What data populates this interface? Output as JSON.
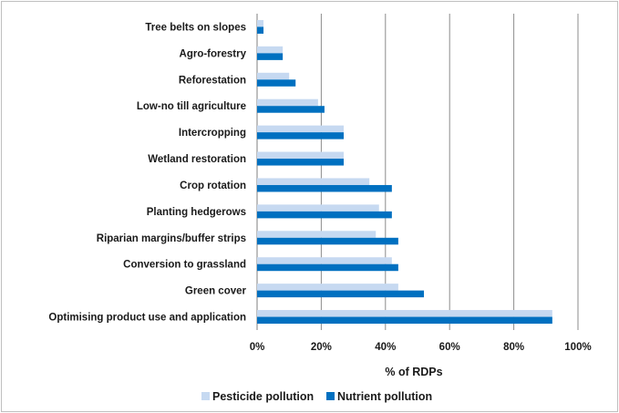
{
  "chart_data": {
    "type": "bar",
    "orientation": "horizontal",
    "categories": [
      "Tree belts on slopes",
      "Agro-forestry",
      "Reforestation",
      "Low-no till agriculture",
      "Intercropping",
      "Wetland restoration",
      "Crop rotation",
      "Planting hedgerows",
      "Riparian margins/buffer strips",
      "Conversion to grassland",
      "Green cover",
      "Optimising product use and application"
    ],
    "series": [
      {
        "name": "Pesticide pollution",
        "color": "#c6d9f1",
        "values": [
          2,
          8,
          10,
          19,
          27,
          27,
          35,
          38,
          37,
          42,
          44,
          92
        ]
      },
      {
        "name": "Nutrient pollution",
        "color": "#0070c0",
        "values": [
          2,
          8,
          12,
          21,
          27,
          27,
          42,
          42,
          44,
          44,
          52,
          92
        ]
      }
    ],
    "xlabel": "% of RDPs",
    "ylabel": "",
    "xlim": [
      0,
      100
    ],
    "xticks": [
      "0%",
      "20%",
      "40%",
      "60%",
      "80%",
      "100%"
    ],
    "grid": "vertical",
    "legend": "bottom"
  }
}
